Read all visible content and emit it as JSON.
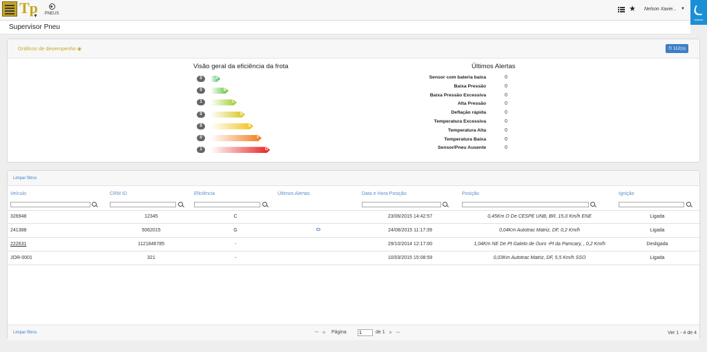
{
  "app": {
    "logo_text": "Tp",
    "nav_pneus": "PNEUS",
    "user": "Nelson Xavie...",
    "brand_text": "autotrac",
    "accent": "#3d7fc4",
    "gold": "#c8a52a"
  },
  "page": {
    "title": "Supervisor Pneu"
  },
  "performance": {
    "title": "Gráficos de desempenho",
    "badge": "112(s)",
    "efficiency_title": "Visão geral da eficiência da frota",
    "efficiency": [
      {
        "count": "0",
        "grade": "A",
        "color": "#2db34a"
      },
      {
        "count": "0",
        "grade": "B",
        "color": "#5cc034"
      },
      {
        "count": "1",
        "grade": "C",
        "color": "#9ccc2a"
      },
      {
        "count": "0",
        "grade": "D",
        "color": "#d6c51c"
      },
      {
        "count": "0",
        "grade": "E",
        "color": "#f2c21a"
      },
      {
        "count": "0",
        "grade": "F",
        "color": "#f07c1e"
      },
      {
        "count": "1",
        "grade": "G",
        "color": "#e8201f"
      }
    ],
    "alerts_title": "Últimos Alertas",
    "alerts": [
      {
        "label": "Sensor com bateria baixa",
        "value": "0"
      },
      {
        "label": "Baixa Pressão",
        "value": "0"
      },
      {
        "label": "Baixa Pressão Excessiva",
        "value": "0"
      },
      {
        "label": "Alta Pressão",
        "value": "0"
      },
      {
        "label": "Deflação rápida",
        "value": "0"
      },
      {
        "label": "Temperatura Excessiva",
        "value": "0"
      },
      {
        "label": "Temperatura Alta",
        "value": "0"
      },
      {
        "label": "Temperatura Baixa",
        "value": "0"
      },
      {
        "label": "Sensor/Pneu Ausente",
        "value": "0"
      }
    ]
  },
  "grid": {
    "clear_filters": "Limpar filtros",
    "columns": [
      "Veículo",
      "CRM ID",
      "Eficiência",
      "Últimos Alertas",
      "Data e Hora Posição",
      "Posição",
      "Ignição"
    ],
    "rows": [
      {
        "veiculo": "326948",
        "crm": "12345",
        "eficiencia": "C",
        "alerta": "",
        "data": "23/06/2015 14:42:57",
        "posicao": "0,45Km O De CESPE UNB, BR, 15,0 Km/h ENE",
        "ignicao": "Ligada"
      },
      {
        "veiculo": "241388",
        "crm": "5062015",
        "eficiencia": "G",
        "alerta": "cloud-icon",
        "data": "24/08/2015 11:17:39",
        "posicao": "0,04Km Autotrac Matriz, DF, 0,2 Km/h",
        "ignicao": "Ligada"
      },
      {
        "veiculo": "222631",
        "crm": "1121846785",
        "eficiencia": "-",
        "alerta": "",
        "data": "29/10/2014 12:17:00",
        "posicao": "1,04Km NE De Pt Galeto de Ouro -Pt da Pamcary, , 0,2 Km/h",
        "ignicao": "Desligada"
      },
      {
        "veiculo": "JOR-0001",
        "crm": "321",
        "eficiencia": "-",
        "alerta": "",
        "data": "10/03/2015 15:08:59",
        "posicao": "0,03Km Autotrac Matriz, DF, 5,5 Km/h SSO",
        "ignicao": "Ligada"
      }
    ],
    "pager": {
      "page_label": "Página",
      "page_value": "1",
      "of_label": "de 1",
      "view_count": "Ver 1 - 4 de 4"
    }
  }
}
